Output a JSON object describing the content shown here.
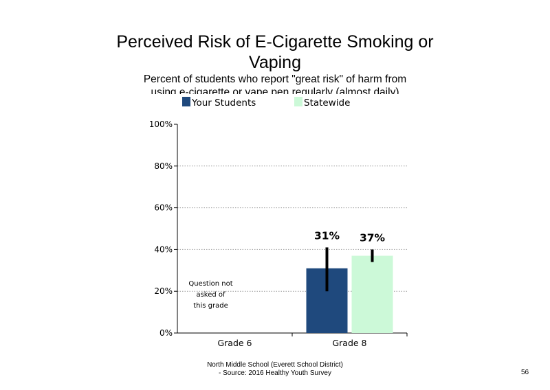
{
  "slide": {
    "title_line1": "Perceived Risk of E-Cigarette Smoking or",
    "title_line2": "Vaping",
    "subtitle_line1": "Percent of students  who report \"great risk\" of harm from",
    "subtitle_line2": "using e-cigarette or vape pen regularly (almost daily)",
    "footer_line1": "North Middle School (Everett School District)",
    "footer_line2": "- Source: 2016 Healthy Youth Survey",
    "page_number": "56"
  },
  "chart_data": {
    "type": "bar",
    "categories": [
      "Grade 6",
      "Grade 8"
    ],
    "series": [
      {
        "name": "Your Students",
        "color": "#1f497d",
        "values": [
          null,
          31
        ],
        "labels": [
          "",
          "31%"
        ],
        "error_low": [
          null,
          20
        ],
        "error_high": [
          null,
          41
        ]
      },
      {
        "name": "Statewide",
        "color": "#ccf9d8",
        "values": [
          null,
          37
        ],
        "labels": [
          "",
          "37%"
        ],
        "error_low": [
          null,
          34
        ],
        "error_high": [
          null,
          40
        ]
      }
    ],
    "ylim": [
      0,
      100
    ],
    "yticks": [
      0,
      20,
      40,
      60,
      80,
      100
    ],
    "ytick_labels": [
      "0%",
      "20%",
      "40%",
      "60%",
      "80%",
      "100%"
    ],
    "grid": true,
    "legend_position": "top",
    "annotation": {
      "category": "Grade 6",
      "lines": [
        "Question not",
        "asked of",
        "this grade"
      ]
    }
  }
}
